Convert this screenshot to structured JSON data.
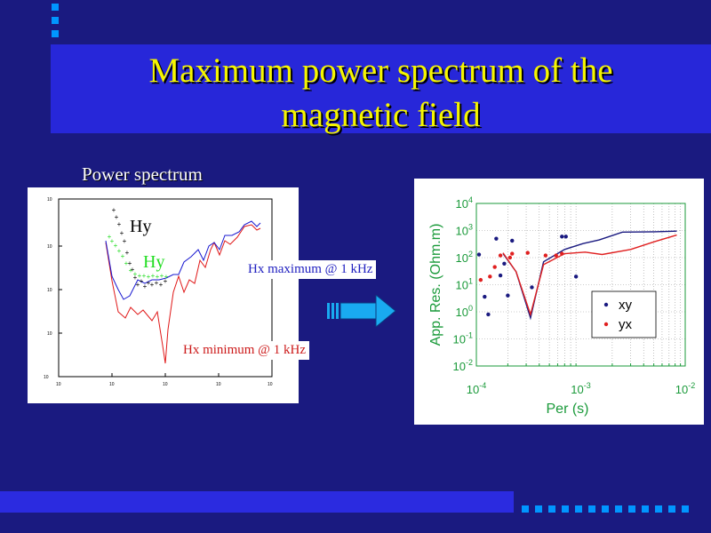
{
  "slide": {
    "title_line1": "Maximum power spectrum of the",
    "title_line2": "magnetic field",
    "caption": "Power spectrum",
    "colors": {
      "background": "#1a1a80",
      "title_band": "#2727d9",
      "title_text": "#f5f500",
      "accent_squares": "#0096ff",
      "arrow": "#19aaf0"
    }
  },
  "left_plot": {
    "labels": {
      "hy_black": "Hy",
      "hy_green": "Hy",
      "hx_max": "Hx maximum @ 1 kHz",
      "hx_min": "Hx minimum @ 1 kHz"
    }
  },
  "chart_data": {
    "type": "scatter",
    "xlabel": "Per (s)",
    "ylabel": "App. Res. (Ohm.m)",
    "xscale": "log",
    "yscale": "log",
    "xlim": [
      0.0001,
      0.01
    ],
    "ylim": [
      0.01,
      10000
    ],
    "x_tick_labels": [
      {
        "base": "10",
        "exp": "-4"
      },
      {
        "base": "10",
        "exp": "-3"
      },
      {
        "base": "10",
        "exp": "-2"
      }
    ],
    "y_tick_labels": [
      {
        "base": "10",
        "exp": "4"
      },
      {
        "base": "10",
        "exp": "3"
      },
      {
        "base": "10",
        "exp": "2"
      },
      {
        "base": "10",
        "exp": "1"
      },
      {
        "base": "10",
        "exp": "0"
      },
      {
        "base": "10",
        "exp": "-1"
      },
      {
        "base": "10",
        "exp": "-2"
      }
    ],
    "grid": true,
    "legend_position": "right",
    "series": [
      {
        "name": "xy",
        "color": "#1a1a80",
        "points": [
          [
            0.000106,
            130
          ],
          [
            0.00012,
            3.6
          ],
          [
            0.00013,
            0.8
          ],
          [
            0.000155,
            500
          ],
          [
            0.00017,
            22
          ],
          [
            0.000185,
            60
          ],
          [
            0.0002,
            4
          ],
          [
            0.00022,
            420
          ],
          [
            0.00034,
            8
          ],
          [
            0.00066,
            600
          ],
          [
            0.00072,
            600
          ],
          [
            0.0009,
            20
          ]
        ],
        "line": [
          [
            0.00018,
            140
          ],
          [
            0.00024,
            30
          ],
          [
            0.00033,
            0.6
          ],
          [
            0.00044,
            70
          ],
          [
            0.0007,
            200
          ],
          [
            0.00105,
            330
          ],
          [
            0.0015,
            450
          ],
          [
            0.0025,
            870
          ],
          [
            0.0051,
            900
          ],
          [
            0.0083,
            950
          ]
        ]
      },
      {
        "name": "yx",
        "color": "#e02020",
        "points": [
          [
            0.00011,
            15
          ],
          [
            0.000135,
            20
          ],
          [
            0.00015,
            45
          ],
          [
            0.00017,
            120
          ],
          [
            0.00021,
            100
          ],
          [
            0.00022,
            140
          ],
          [
            0.00031,
            150
          ],
          [
            0.00046,
            120
          ],
          [
            0.00058,
            120
          ],
          [
            0.00066,
            140
          ]
        ],
        "line": [
          [
            0.00018,
            150
          ],
          [
            0.00024,
            30
          ],
          [
            0.00033,
            0.8
          ],
          [
            0.00044,
            55
          ],
          [
            0.0007,
            140
          ],
          [
            0.0011,
            160
          ],
          [
            0.0016,
            130
          ],
          [
            0.003,
            200
          ],
          [
            0.005,
            380
          ],
          [
            0.0083,
            680
          ]
        ]
      }
    ]
  }
}
